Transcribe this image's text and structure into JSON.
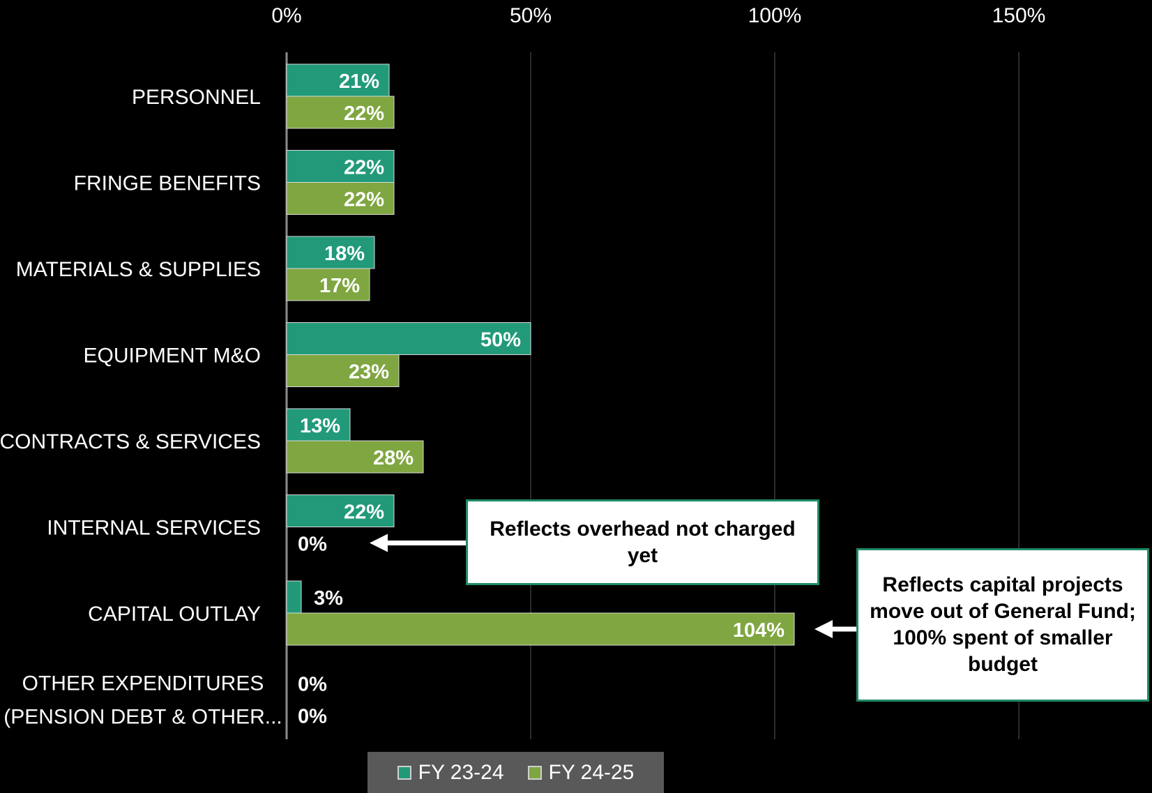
{
  "colors": {
    "fy2324": "#229a7a",
    "fy2425": "#7fa640",
    "background": "#000000"
  },
  "chart_data": {
    "type": "bar",
    "orientation": "horizontal",
    "xlim": [
      0,
      175
    ],
    "x_ticks": [
      "0%",
      "50%",
      "100%",
      "150%"
    ],
    "x_tick_values": [
      0,
      50,
      100,
      150
    ],
    "xlabel": "",
    "ylabel": "",
    "grid": true,
    "categories": [
      "PERSONNEL",
      "FRINGE BENEFITS",
      "MATERIALS & SUPPLIES",
      "EQUIPMENT M&O",
      "CONTRACTS & SERVICES",
      "INTERNAL SERVICES",
      "CAPITAL OUTLAY",
      "OTHER EXPENDITURES (PENSION DEBT & OTHER..."
    ],
    "category_lines": [
      [
        "PERSONNEL"
      ],
      [
        "FRINGE BENEFITS"
      ],
      [
        "MATERIALS & SUPPLIES"
      ],
      [
        "EQUIPMENT M&O"
      ],
      [
        "CONTRACTS & SERVICES"
      ],
      [
        "INTERNAL SERVICES"
      ],
      [
        "CAPITAL OUTLAY"
      ],
      [
        "OTHER EXPENDITURES",
        "(PENSION DEBT & OTHER..."
      ]
    ],
    "series": [
      {
        "name": "FY 23-24",
        "values": [
          21,
          22,
          18,
          50,
          13,
          22,
          3,
          0
        ],
        "labels": [
          "21%",
          "22%",
          "18%",
          "50%",
          "13%",
          "22%",
          "3%",
          "0%"
        ]
      },
      {
        "name": "FY 24-25",
        "values": [
          22,
          22,
          17,
          23,
          28,
          0,
          104,
          0
        ],
        "labels": [
          "22%",
          "22%",
          "17%",
          "23%",
          "28%",
          "0%",
          "104%",
          "0%"
        ]
      }
    ],
    "legend_position": "bottom",
    "annotations": [
      {
        "text": "Reflects overhead not charged yet",
        "category": "INTERNAL SERVICES",
        "series": "FY 24-25"
      },
      {
        "text": "Reflects capital projects move out of General Fund; 100% spent of smaller budget",
        "category": "CAPITAL OUTLAY",
        "series": "FY 24-25"
      }
    ]
  }
}
